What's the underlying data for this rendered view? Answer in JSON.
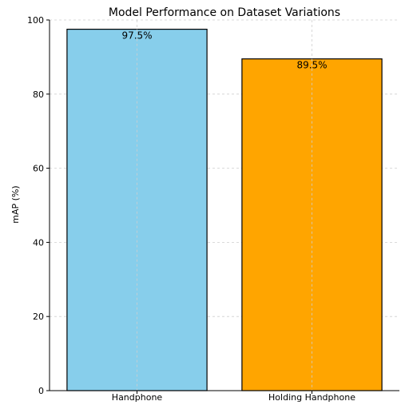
{
  "chart_data": {
    "type": "bar",
    "title": "Model Performance on Dataset Variations",
    "xlabel": "",
    "ylabel": "mAP (%)",
    "categories": [
      "Handphone",
      "Holding Handphone"
    ],
    "values": [
      97.5,
      89.5
    ],
    "data_labels": [
      "97.5%",
      "89.5%"
    ],
    "colors": [
      "#87CEEB",
      "#FFA500"
    ],
    "edge_color": "#000000",
    "ylim": [
      0,
      100
    ],
    "yticks": [
      0,
      20,
      40,
      60,
      80,
      100
    ],
    "grid": true
  }
}
